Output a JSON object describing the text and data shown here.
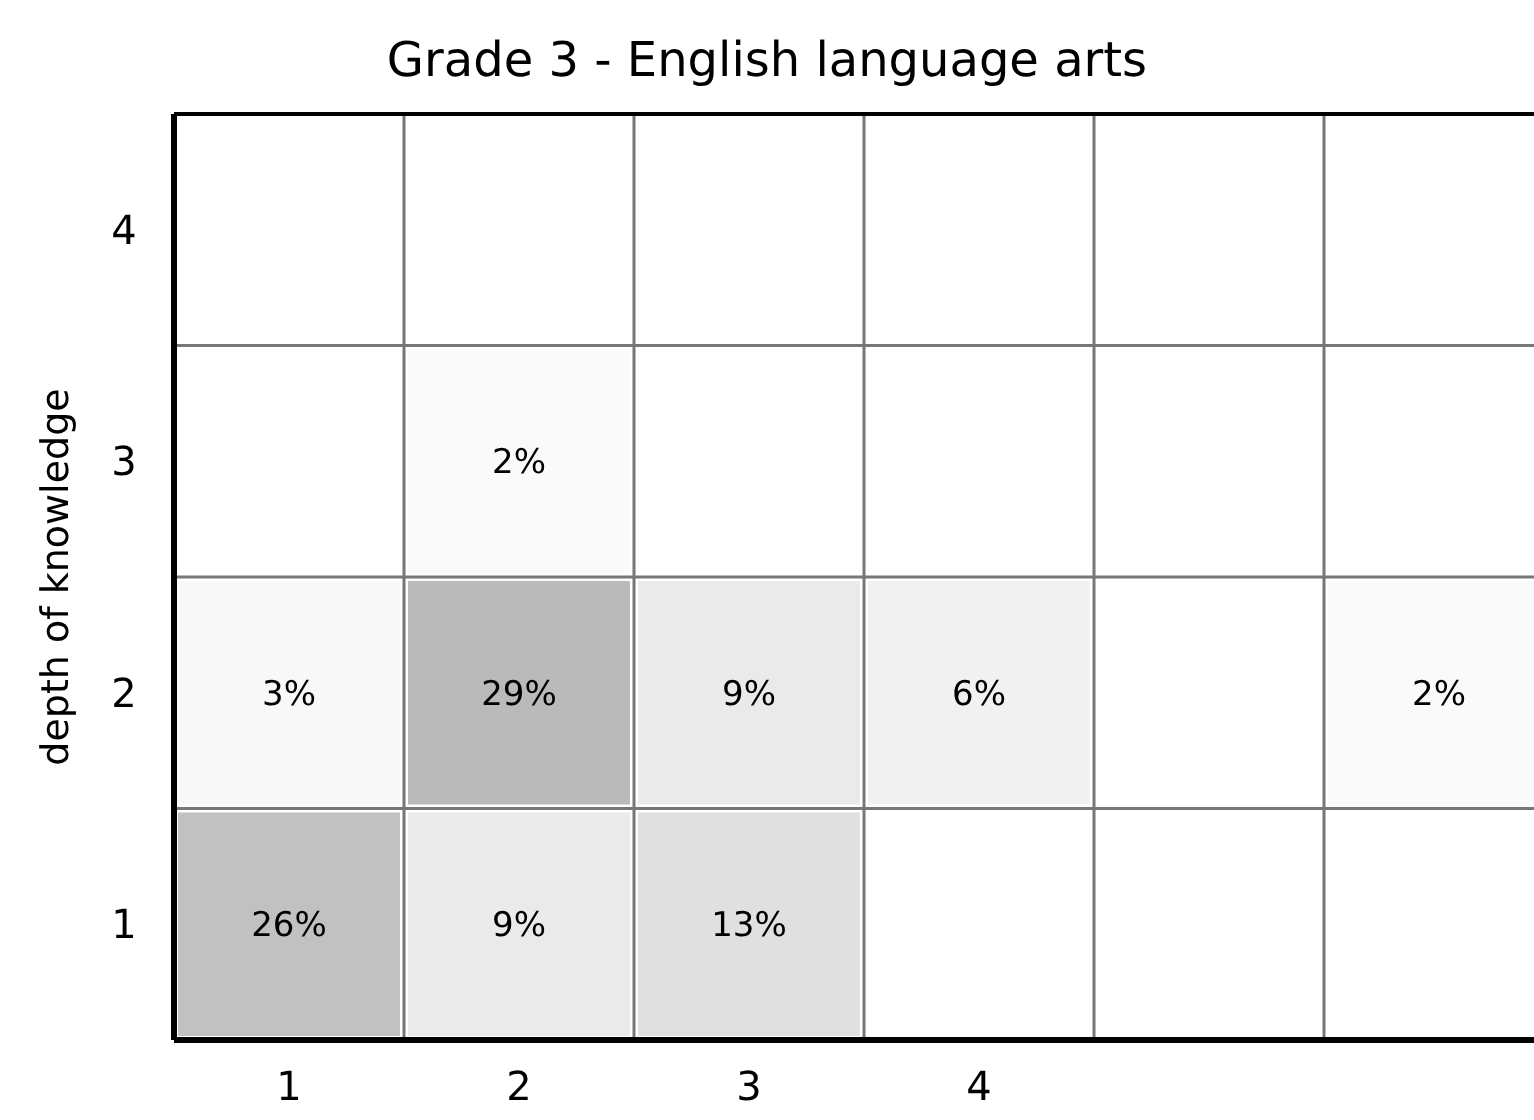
{
  "chart_data": {
    "type": "heatmap",
    "title": "Grade 3 - English language arts",
    "ylabel": "depth of knowledge",
    "categories": [
      "1",
      "2",
      "3",
      "4",
      null,
      null
    ],
    "y_categories": [
      "4",
      "3",
      "2",
      "1"
    ],
    "cells": [
      [
        null,
        null,
        null,
        null,
        null,
        null
      ],
      [
        null,
        2,
        null,
        null,
        null,
        null
      ],
      [
        3,
        29,
        9,
        6,
        null,
        2
      ],
      [
        26,
        9,
        13,
        null,
        null,
        null
      ]
    ],
    "cell_labels": [
      [
        null,
        null,
        null,
        null,
        null,
        null
      ],
      [
        null,
        "2%",
        null,
        null,
        null,
        null
      ],
      [
        "3%",
        "29%",
        "9%",
        "6%",
        null,
        "2%"
      ],
      [
        "26%",
        "9%",
        "13%",
        null,
        null,
        null
      ]
    ]
  }
}
